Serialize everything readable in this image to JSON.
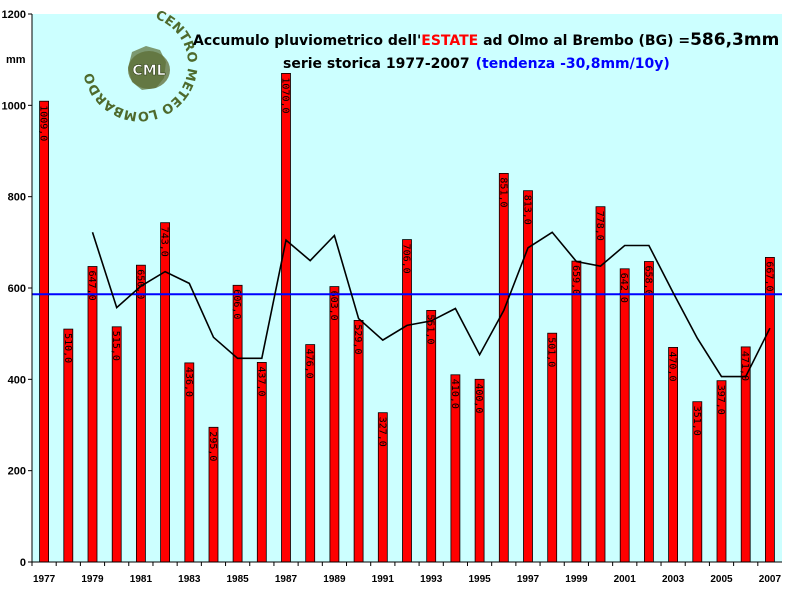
{
  "title": {
    "prefix": "Accumulo pluviometrico dell'",
    "highlight": "ESTATE",
    "middle": " ad Olmo al Brembo (BG) =",
    "total": "586,3mm",
    "subtitle": "serie storica 1977-2007",
    "trend": "(tendenza -30,8mm/10y)"
  },
  "logo": {
    "initials": "CML",
    "ring_text": "CENTRO METEO LOMBARDO"
  },
  "colors": {
    "plot_background": "#ccffff",
    "bar": "#ff0000",
    "mean_line": "#0000ff",
    "moving_average": "#000000",
    "highlight_text": "#ff0000",
    "trend_text": "#0000ff"
  },
  "chart_data": {
    "type": "bar",
    "ylabel": "mm",
    "ylim": [
      0,
      1200
    ],
    "yticks": [
      0,
      200,
      400,
      600,
      800,
      1000,
      1200
    ],
    "grid": false,
    "categories": [
      "1977",
      "1978",
      "1979",
      "1980",
      "1981",
      "1982",
      "1983",
      "1984",
      "1985",
      "1986",
      "1987",
      "1988",
      "1989",
      "1990",
      "1991",
      "1992",
      "1993",
      "1994",
      "1995",
      "1996",
      "1997",
      "1998",
      "1999",
      "2000",
      "2001",
      "2002",
      "2003",
      "2004",
      "2005",
      "2006",
      "2007"
    ],
    "xtick_labels": [
      "1977",
      "",
      "1979",
      "",
      "1981",
      "",
      "1983",
      "",
      "1985",
      "",
      "1987",
      "",
      "1989",
      "",
      "1991",
      "",
      "1993",
      "",
      "1995",
      "",
      "1997",
      "",
      "1999",
      "",
      "2001",
      "",
      "2003",
      "",
      "2005",
      "",
      "2007"
    ],
    "series": [
      {
        "values": [
          1009.0,
          510.0,
          647.0,
          515.0,
          650.0,
          743.0,
          436.0,
          295.0,
          606.0,
          437.0,
          1070.0,
          476.0,
          603.0,
          529.0,
          327.0,
          706.0,
          551.0,
          410.0,
          400.0,
          851.0,
          813.0,
          501.0,
          659.0,
          778.0,
          642.0,
          658.0,
          470.0,
          351.0,
          397.0,
          471.0,
          667.0
        ],
        "data_labels": [
          "1009,0",
          "510,0",
          "647,0",
          "515,0",
          "650,0",
          "743,0",
          "436,0",
          "295,0",
          "606,0",
          "437,0",
          "1070,0",
          "476,0",
          "603,0",
          "529,0",
          "327,0",
          "706,0",
          "551,0",
          "410,0",
          "400,0",
          "851,0",
          "813,0",
          "501,0",
          "659,0",
          "778,0",
          "642,0",
          "658,0",
          "470,0",
          "351,0",
          "397,0",
          "471,0",
          "667,0"
        ]
      }
    ],
    "mean_line": 586.3,
    "moving_average": {
      "x": [
        "1979",
        "1980",
        "1981",
        "1982",
        "1983",
        "1984",
        "1985",
        "1986",
        "1987",
        "1988",
        "1989",
        "1990",
        "1991",
        "1992",
        "1993",
        "1994",
        "1995",
        "1996",
        "1997",
        "1998",
        "1999",
        "2000",
        "2001",
        "2002",
        "2003",
        "2004",
        "2005",
        "2006",
        "2007"
      ],
      "values": [
        722,
        557,
        604,
        636,
        610,
        492,
        446,
        446,
        705,
        660,
        715,
        533,
        486,
        518,
        528,
        555,
        454,
        551,
        688,
        722,
        658,
        648,
        693,
        693,
        590,
        490,
        406,
        406,
        512
      ]
    }
  }
}
